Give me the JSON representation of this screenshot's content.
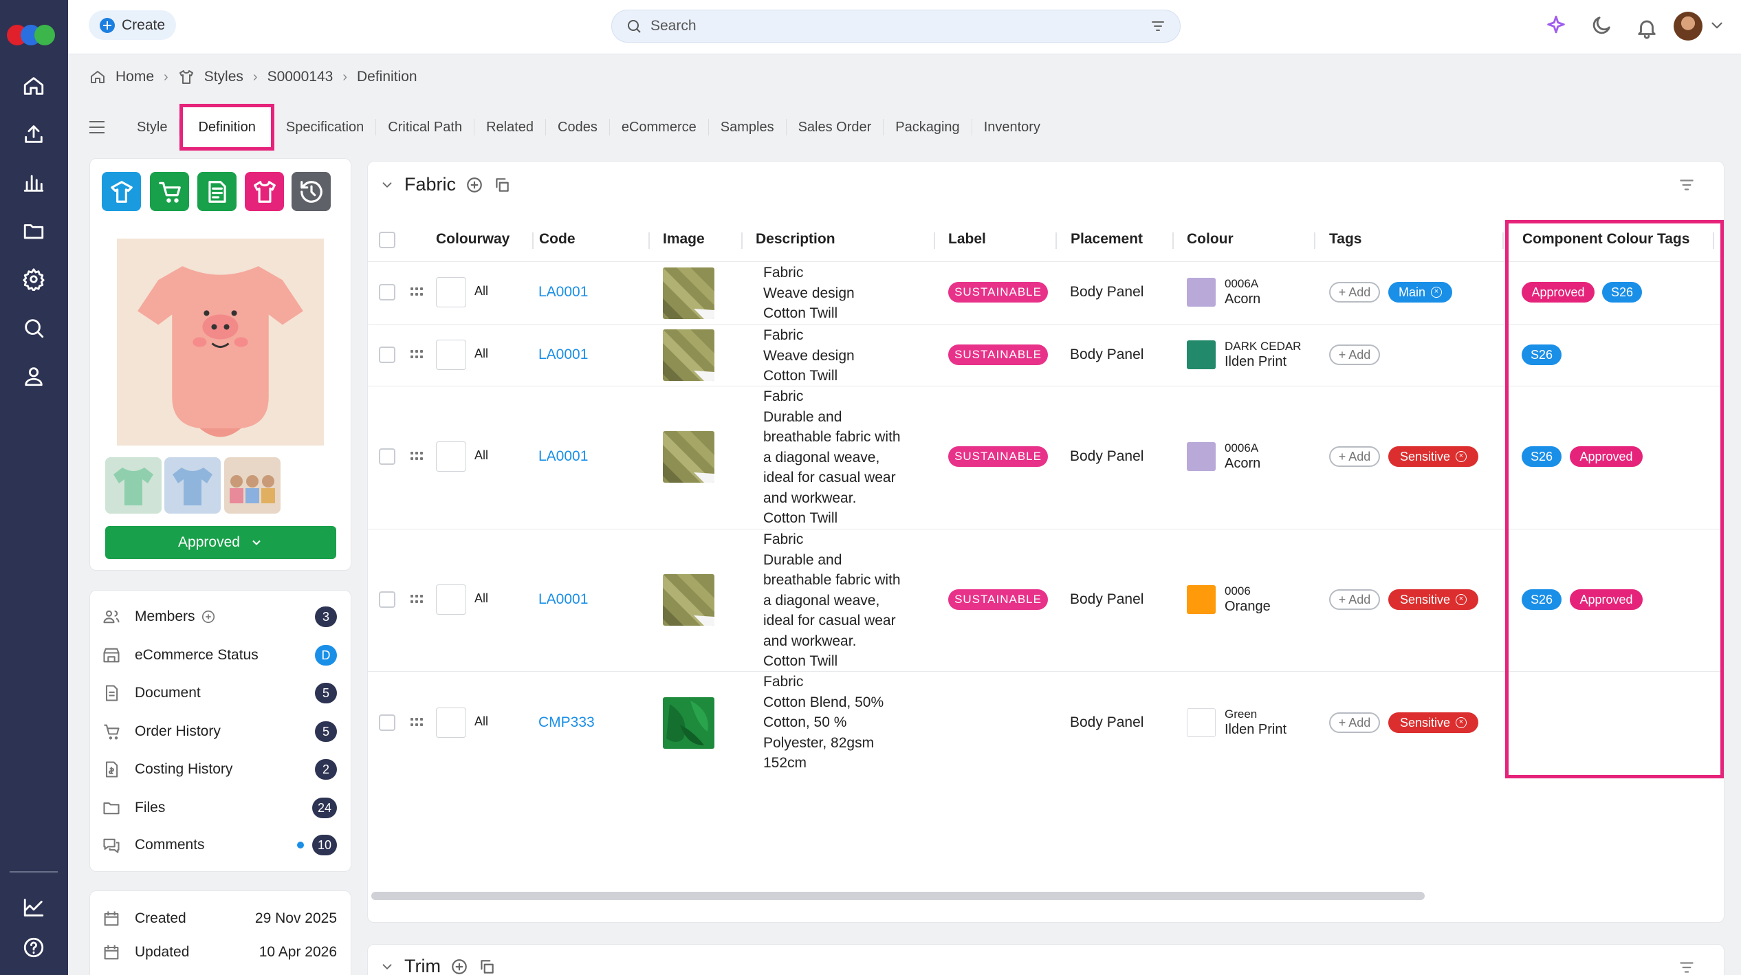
{
  "topbar": {
    "create_label": "Create",
    "search_placeholder": "Search"
  },
  "breadcrumb": [
    "Home",
    "Styles",
    "S0000143",
    "Definition"
  ],
  "tabs": [
    "Style",
    "Definition",
    "Specification",
    "Critical Path",
    "Related",
    "Codes",
    "eCommerce",
    "Samples",
    "Sales Order",
    "Packaging",
    "Inventory"
  ],
  "active_tab": "Definition",
  "product": {
    "status_label": "Approved",
    "action_icons": [
      "style-icon",
      "ecommerce-cart-icon",
      "costing-sheet-icon",
      "sample-icon",
      "history-icon"
    ]
  },
  "meta": [
    {
      "label": "Members",
      "count": "3"
    },
    {
      "label": "eCommerce Status",
      "count": "D"
    },
    {
      "label": "Document",
      "count": "5"
    },
    {
      "label": "Order History",
      "count": "5"
    },
    {
      "label": "Costing History",
      "count": "2"
    },
    {
      "label": "Files",
      "count": "24"
    },
    {
      "label": "Comments",
      "count": "10"
    }
  ],
  "dates": {
    "created_label": "Created",
    "created_value": "29 Nov 2025",
    "updated_label": "Updated",
    "updated_value": "10 Apr 2026"
  },
  "fabric": {
    "title": "Fabric",
    "columns": [
      "Colourway",
      "Code",
      "Image",
      "Description",
      "Label",
      "Placement",
      "Colour",
      "Tags",
      "Component Colour Tags"
    ],
    "add_label": "+ Add",
    "rows": [
      {
        "colourway": "All",
        "code": "LA0001",
        "desc": [
          "Fabric",
          "Weave design",
          "Cotton Twill"
        ],
        "label": "SUSTAINABLE",
        "placement": "Body Panel",
        "colour_code": "0006A",
        "colour_name": "Acorn",
        "colour_hex": "#b8a9d9",
        "tags": [
          {
            "text": "Main",
            "type": "main"
          }
        ],
        "component_tags": [
          "Approved",
          "S26"
        ]
      },
      {
        "colourway": "All",
        "code": "LA0001",
        "desc": [
          "Fabric",
          "Weave design",
          "Cotton Twill"
        ],
        "label": "SUSTAINABLE",
        "placement": "Body Panel",
        "colour_code": "DARK CEDAR",
        "colour_name": "Ilden Print",
        "colour_hex": "#22896a",
        "tags": [],
        "component_tags": [
          "S26"
        ]
      },
      {
        "colourway": "All",
        "code": "LA0001",
        "desc": [
          "Fabric",
          "Durable and",
          "breathable fabric with",
          "a diagonal weave,",
          "ideal for casual wear",
          "and workwear.",
          "Cotton Twill"
        ],
        "label": "SUSTAINABLE",
        "placement": "Body Panel",
        "colour_code": "0006A",
        "colour_name": "Acorn",
        "colour_hex": "#b8a9d9",
        "tags": [
          {
            "text": "Sensitive",
            "type": "sens"
          }
        ],
        "component_tags": [
          "S26",
          "Approved"
        ]
      },
      {
        "colourway": "All",
        "code": "LA0001",
        "desc": [
          "Fabric",
          "Durable and",
          "breathable fabric with",
          "a diagonal weave,",
          "ideal for casual wear",
          "and workwear.",
          "Cotton Twill"
        ],
        "label": "SUSTAINABLE",
        "placement": "Body Panel",
        "colour_code": "0006",
        "colour_name": "Orange",
        "colour_hex": "#ff9a0a",
        "tags": [
          {
            "text": "Sensitive",
            "type": "sens"
          }
        ],
        "component_tags": [
          "S26",
          "Approved"
        ]
      },
      {
        "colourway": "All",
        "code": "CMP333",
        "desc": [
          "Fabric",
          "Cotton Blend, 50%",
          "Cotton, 50 %",
          "Polyester, 82gsm",
          "152cm"
        ],
        "label": "",
        "placement": "Body Panel",
        "colour_code": "Green",
        "colour_name": "Ilden Print",
        "colour_hex": "#ffffff",
        "tags": [
          {
            "text": "Sensitive",
            "type": "sens"
          }
        ],
        "component_tags": []
      }
    ]
  },
  "trim": {
    "title": "Trim"
  }
}
